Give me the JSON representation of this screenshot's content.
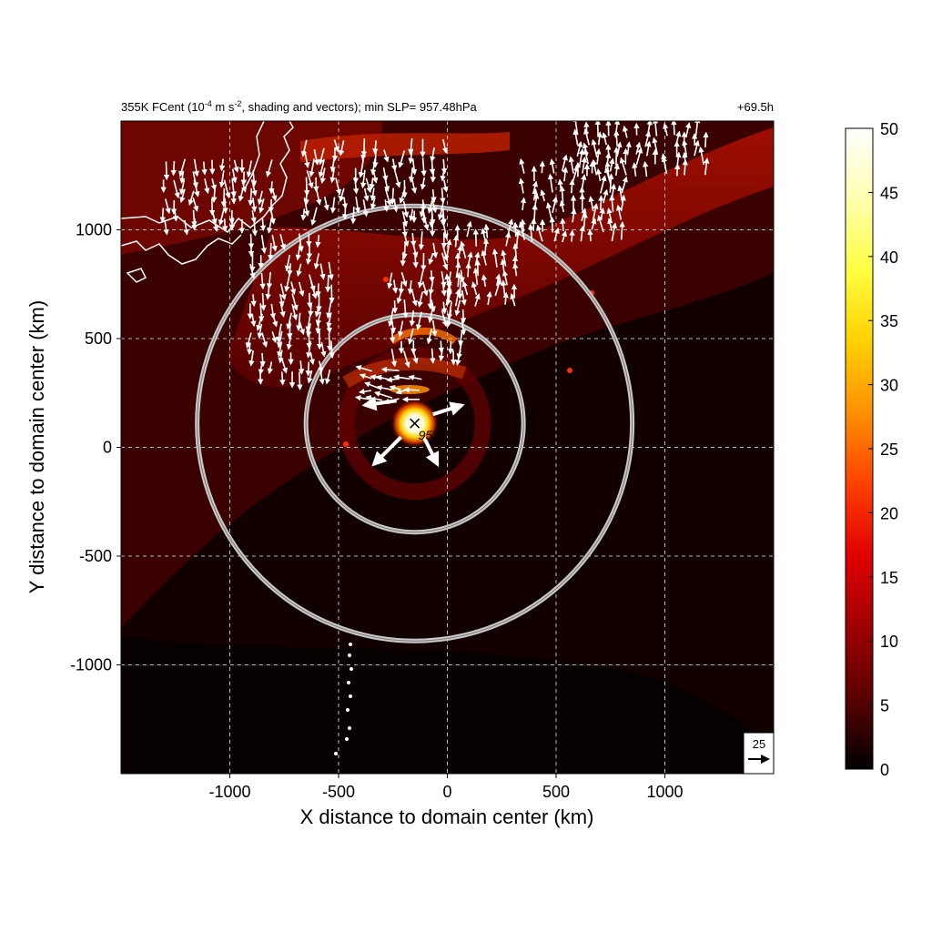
{
  "header": {
    "title_main": "355K FCent (10",
    "title_exp1": "-4",
    "title_mid": " m s",
    "title_exp2": "-2",
    "title_end": ", shading and vectors); min SLP= 957.48hPa",
    "time_label": "+69.5h"
  },
  "chart_data": {
    "type": "heatmap",
    "xlabel": "X distance to domain center (km)",
    "ylabel": "Y distance to domain center (km)",
    "xlim": [
      -1500,
      1500
    ],
    "ylim": [
      -1500,
      1500
    ],
    "x_ticks": [
      -1000,
      -500,
      0,
      500,
      1000
    ],
    "y_ticks": [
      -1000,
      -500,
      0,
      500,
      1000
    ],
    "x_tick_labels": [
      "-1000",
      "-500",
      "0",
      "500",
      "1000"
    ],
    "y_tick_labels": [
      "-1000",
      "-500",
      "0",
      "500",
      "1000"
    ],
    "grid": true,
    "colorbar": {
      "min": 0,
      "max": 50,
      "ticks": [
        0,
        5,
        10,
        15,
        20,
        25,
        30,
        35,
        40,
        45,
        50
      ],
      "tick_labels": [
        "0",
        "5",
        "10",
        "15",
        "20",
        "25",
        "30",
        "35",
        "40",
        "45",
        "50"
      ],
      "colors": [
        "#000000",
        "#5a0000",
        "#a00000",
        "#e00000",
        "#ff4000",
        "#ff9000",
        "#ffd000",
        "#ffff40",
        "#ffffb0",
        "#ffffff"
      ]
    },
    "storm_center": {
      "x": -150,
      "y": 110,
      "label": "957.7"
    },
    "range_rings_km": [
      500,
      1000
    ],
    "reference_vector": {
      "value": "25"
    },
    "vector_regions": [
      {
        "xr": [
          -1300,
          -800
        ],
        "yr": [
          1050,
          1350
        ]
      },
      {
        "xr": [
          -900,
          -500
        ],
        "yr": [
          350,
          1000
        ]
      },
      {
        "xr": [
          -650,
          0
        ],
        "yr": [
          1100,
          1450
        ]
      },
      {
        "xr": [
          -200,
          0
        ],
        "yr": [
          900,
          1150
        ]
      },
      {
        "xr": [
          0,
          350
        ],
        "yr": [
          650,
          1000
        ]
      },
      {
        "xr": [
          350,
          800
        ],
        "yr": [
          950,
          1300
        ]
      },
      {
        "xr": [
          600,
          1200
        ],
        "yr": [
          1250,
          1450
        ]
      },
      {
        "xr": [
          -250,
          100
        ],
        "yr": [
          450,
          850
        ]
      },
      {
        "xr": [
          -350,
          -100
        ],
        "yr": [
          220,
          360
        ]
      }
    ]
  },
  "colors": {
    "ring": "#c8c8c8",
    "grid": "#bbbbbb",
    "coast": "#ffffff",
    "vector": "#ffffff"
  }
}
